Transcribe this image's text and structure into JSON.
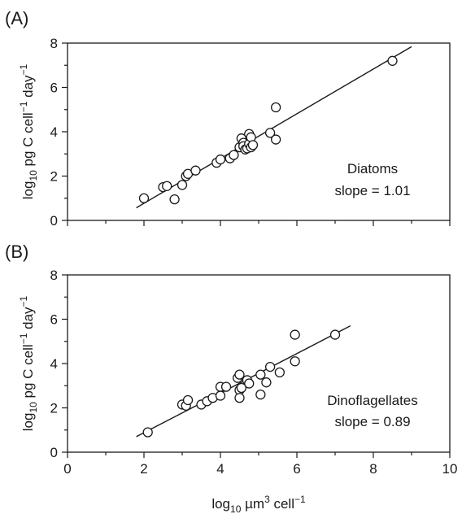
{
  "figure": {
    "xlabel_main": "log",
    "xlabel_sub": "10",
    "xlabel_rest": " µm",
    "xlabel_sup": "3",
    "xlabel_tail": " cell",
    "xlabel_sup2": "−1"
  },
  "colors": {
    "axis": "#1a1a1a",
    "marker_fill": "#ffffff",
    "marker_stroke": "#1a1a1a",
    "line": "#1a1a1a"
  },
  "chart_data": [
    {
      "type": "scatter",
      "panel_label": "(A)",
      "ylabel_parts": [
        "log",
        "10",
        " pg C cell",
        "−1",
        " day",
        "−1"
      ],
      "xlim": [
        0,
        10
      ],
      "ylim": [
        0,
        8
      ],
      "xticks": [],
      "yticks": [
        0,
        2,
        4,
        6,
        8
      ],
      "annotation": [
        "Diatoms",
        "slope = 1.01"
      ],
      "fit_line": {
        "x": [
          1.8,
          9.0
        ],
        "y": [
          0.57,
          7.84
        ]
      },
      "points": [
        {
          "x": 2.0,
          "y": 1.0
        },
        {
          "x": 2.5,
          "y": 1.5
        },
        {
          "x": 2.6,
          "y": 1.55
        },
        {
          "x": 2.8,
          "y": 0.95
        },
        {
          "x": 3.0,
          "y": 1.6
        },
        {
          "x": 3.1,
          "y": 2.0
        },
        {
          "x": 3.15,
          "y": 2.1
        },
        {
          "x": 3.35,
          "y": 2.25
        },
        {
          "x": 3.9,
          "y": 2.6
        },
        {
          "x": 4.0,
          "y": 2.75
        },
        {
          "x": 4.25,
          "y": 2.8
        },
        {
          "x": 4.35,
          "y": 2.95
        },
        {
          "x": 4.5,
          "y": 3.3
        },
        {
          "x": 4.55,
          "y": 3.7
        },
        {
          "x": 4.6,
          "y": 3.5
        },
        {
          "x": 4.6,
          "y": 3.35
        },
        {
          "x": 4.65,
          "y": 3.2
        },
        {
          "x": 4.7,
          "y": 3.25
        },
        {
          "x": 4.75,
          "y": 3.9
        },
        {
          "x": 4.75,
          "y": 3.45
        },
        {
          "x": 4.8,
          "y": 3.3
        },
        {
          "x": 4.8,
          "y": 3.75
        },
        {
          "x": 4.85,
          "y": 3.4
        },
        {
          "x": 5.3,
          "y": 3.95
        },
        {
          "x": 5.45,
          "y": 5.1
        },
        {
          "x": 5.45,
          "y": 3.65
        },
        {
          "x": 8.5,
          "y": 7.2
        }
      ]
    },
    {
      "type": "scatter",
      "panel_label": "(B)",
      "ylabel_parts": [
        "log",
        "10",
        " pg C cell",
        "−1",
        " day",
        "−1"
      ],
      "xlim": [
        0,
        10
      ],
      "ylim": [
        0,
        8
      ],
      "xticks": [
        0,
        2,
        4,
        6,
        8,
        10
      ],
      "yticks": [
        0,
        2,
        4,
        6,
        8
      ],
      "annotation": [
        "Dinoflagellates",
        "slope = 0.89"
      ],
      "fit_line": {
        "x": [
          1.8,
          7.4
        ],
        "y": [
          0.7,
          5.7
        ]
      },
      "points": [
        {
          "x": 2.1,
          "y": 0.9
        },
        {
          "x": 3.0,
          "y": 2.15
        },
        {
          "x": 3.1,
          "y": 2.1
        },
        {
          "x": 3.15,
          "y": 2.35
        },
        {
          "x": 3.5,
          "y": 2.15
        },
        {
          "x": 3.65,
          "y": 2.3
        },
        {
          "x": 3.8,
          "y": 2.45
        },
        {
          "x": 4.0,
          "y": 2.55
        },
        {
          "x": 4.0,
          "y": 2.95
        },
        {
          "x": 4.15,
          "y": 2.95
        },
        {
          "x": 4.45,
          "y": 3.35
        },
        {
          "x": 4.5,
          "y": 2.8
        },
        {
          "x": 4.5,
          "y": 2.45
        },
        {
          "x": 4.5,
          "y": 3.5
        },
        {
          "x": 4.55,
          "y": 2.9
        },
        {
          "x": 4.7,
          "y": 3.25
        },
        {
          "x": 4.75,
          "y": 3.1
        },
        {
          "x": 5.05,
          "y": 3.5
        },
        {
          "x": 5.05,
          "y": 2.6
        },
        {
          "x": 5.2,
          "y": 3.15
        },
        {
          "x": 5.3,
          "y": 3.85
        },
        {
          "x": 5.55,
          "y": 3.6
        },
        {
          "x": 5.95,
          "y": 4.1
        },
        {
          "x": 5.95,
          "y": 5.3
        },
        {
          "x": 7.0,
          "y": 5.3
        }
      ]
    }
  ]
}
